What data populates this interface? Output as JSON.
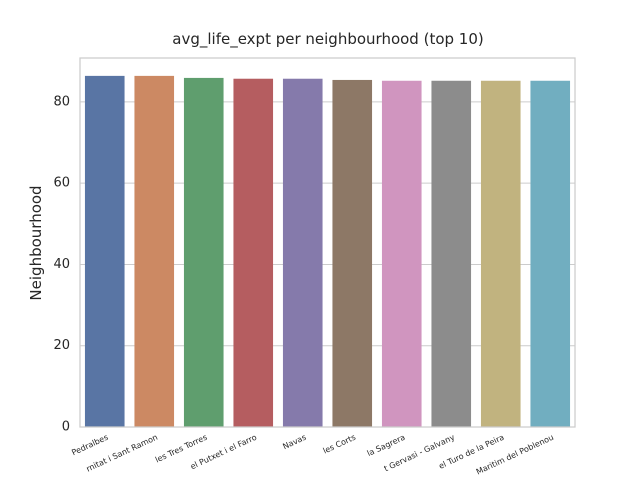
{
  "chart_data": {
    "type": "bar",
    "title": "avg_life_expt per neighbourhood (top 10)",
    "y_label": "Neighbourhood",
    "categories": [
      "Pedralbes",
      "rnitat i Sant Ramon",
      "les Tres Torres",
      "el Putxet i el Farro",
      "Navas",
      "les Corts",
      "la Sagrera",
      "t Gervasi - Galvany",
      "el Turo de la Peira",
      "Maritim del Poblenou"
    ],
    "values": [
      86.4,
      86.4,
      85.9,
      85.7,
      85.7,
      85.4,
      85.2,
      85.2,
      85.2,
      85.2
    ],
    "colors": [
      "#5975a4",
      "#cc8963",
      "#5f9e6e",
      "#b55d60",
      "#857aab",
      "#8d7866",
      "#d095bf",
      "#8c8c8c",
      "#c1b37f",
      "#71aec0"
    ],
    "ylim": [
      0,
      90.8
    ],
    "yticks": [
      0,
      20,
      40,
      60,
      80
    ],
    "grid": true
  }
}
